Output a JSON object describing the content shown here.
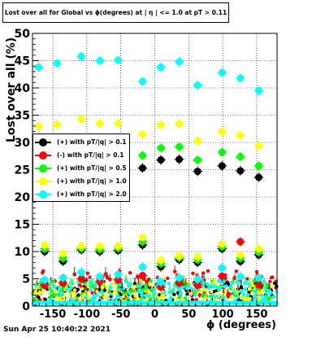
{
  "title": "Lost over all for Global vs ϕ(degrees) at | η | <= 1.0 at pT > 0.11",
  "timestamp": "Sun Apr 25 10:40:22 2021",
  "chart_data": {
    "type": "scatter",
    "title": "Lost over all for Global vs ϕ(degrees) at | η | <= 1.0 at pT > 0.11",
    "xlabel": "ϕ (degrees)",
    "ylabel": "Lost over all (%)",
    "xlim": [
      -180,
      180
    ],
    "ylim": [
      0,
      50
    ],
    "xticks": [
      -150,
      -100,
      -50,
      0,
      50,
      100,
      150
    ],
    "yticks": [
      0,
      5,
      10,
      15,
      20,
      25,
      30,
      35,
      40,
      45,
      50
    ],
    "grid": true,
    "legend_position": "left-middle",
    "series": [
      {
        "name": "(+) with pT/|q| > 0.1",
        "color": "#000000",
        "x": [
          -162,
          -135,
          -108,
          -81,
          -54,
          -18,
          9,
          36,
          63,
          99,
          126,
          153
        ],
        "y": [
          [
            -162,
            10.0
          ],
          [
            -135,
            8.2
          ],
          [
            -108,
            10.3
          ],
          [
            -81,
            10.0
          ],
          [
            -54,
            10.2
          ],
          [
            -18,
            11.2
          ],
          [
            9,
            7.2
          ],
          [
            36,
            8.5
          ],
          [
            63,
            8.0
          ],
          [
            99,
            10.5
          ],
          [
            126,
            8.2
          ],
          [
            153,
            9.4
          ]
        ]
      },
      {
        "name": "(-) with pT/|q| > 0.1",
        "color": "#ff0000",
        "x": [
          -162,
          -135,
          -108,
          -81,
          -54,
          -18,
          9,
          36,
          63,
          99,
          126,
          153
        ],
        "y": [
          [
            -162,
            3.8
          ],
          [
            -135,
            4.2
          ],
          [
            -108,
            5.0
          ],
          [
            -81,
            4.5
          ],
          [
            -54,
            4.8
          ],
          [
            -18,
            5.6
          ],
          [
            9,
            3.5
          ],
          [
            36,
            4.2
          ],
          [
            63,
            3.8
          ],
          [
            99,
            5.5
          ],
          [
            126,
            11.8
          ],
          [
            153,
            4.0
          ]
        ]
      },
      {
        "name": "(+) with pT/|q| > 0.5",
        "color": "#00ff00",
        "x": [
          -162,
          -135,
          -108,
          -81,
          -54,
          -18,
          9,
          36,
          63,
          99,
          126,
          153
        ],
        "y": [
          [
            -162,
            10.5
          ],
          [
            -135,
            8.8
          ],
          [
            -108,
            10.6
          ],
          [
            -81,
            10.4
          ],
          [
            -54,
            10.6
          ],
          [
            -18,
            11.8
          ],
          [
            9,
            7.8
          ],
          [
            36,
            8.9
          ],
          [
            63,
            8.5
          ],
          [
            99,
            10.9
          ],
          [
            126,
            8.8
          ],
          [
            153,
            9.9
          ]
        ]
      },
      {
        "name": "(+) with pT/|q| > 1.0",
        "color": "#ffff00",
        "x": [
          -162,
          -135,
          -108,
          -81,
          -54,
          -18,
          9,
          36,
          63,
          99,
          126,
          153
        ],
        "y": [
          [
            -162,
            11.2
          ],
          [
            -135,
            9.6
          ],
          [
            -108,
            11.0
          ],
          [
            -81,
            11.0
          ],
          [
            -54,
            11.0
          ],
          [
            -18,
            12.6
          ],
          [
            9,
            8.4
          ],
          [
            36,
            9.2
          ],
          [
            63,
            9.0
          ],
          [
            99,
            11.4
          ],
          [
            126,
            9.4
          ],
          [
            153,
            10.5
          ]
        ]
      },
      {
        "name": "(+) with pT/|q| > 2.0",
        "color": "#00ffff",
        "x": [
          -162,
          -135,
          -108,
          -81,
          -54,
          -18,
          9,
          36,
          63,
          99,
          126,
          153
        ],
        "y": [
          [
            -162,
            4.8
          ],
          [
            -135,
            5.2
          ],
          [
            -108,
            6.2
          ],
          [
            -81,
            5.4
          ],
          [
            -54,
            5.8
          ],
          [
            -18,
            7.2
          ],
          [
            9,
            4.4
          ],
          [
            36,
            5.2
          ],
          [
            63,
            4.9
          ],
          [
            99,
            7.0
          ],
          [
            126,
            5.4
          ],
          [
            153,
            5.2
          ]
        ]
      }
    ],
    "upper_points": [
      {
        "series": "(+) with pT/|q| > 2.0",
        "color": "#00ffff",
        "points": [
          [
            -171,
            43.8
          ],
          [
            -144,
            44.5
          ],
          [
            -108,
            45.8
          ],
          [
            -81,
            45.0
          ],
          [
            -54,
            45.1
          ],
          [
            -18,
            41.2
          ],
          [
            9,
            43.8
          ],
          [
            36,
            44.8
          ],
          [
            63,
            40.5
          ],
          [
            99,
            42.8
          ],
          [
            126,
            41.8
          ],
          [
            153,
            39.5
          ]
        ]
      },
      {
        "series": "(+) with pT/|q| > 1.0",
        "color": "#ffff00",
        "points": [
          [
            -171,
            33.0
          ],
          [
            -144,
            33.3
          ],
          [
            -108,
            34.3
          ],
          [
            -81,
            33.5
          ],
          [
            -54,
            33.5
          ],
          [
            -18,
            31.5
          ],
          [
            9,
            33.2
          ],
          [
            36,
            33.4
          ],
          [
            63,
            30.3
          ],
          [
            99,
            32.0
          ],
          [
            126,
            31.3
          ],
          [
            153,
            29.4
          ]
        ]
      },
      {
        "series": "(+) with pT/|q| > 0.5",
        "color": "#00ff00",
        "points": [
          [
            -18,
            27.6
          ],
          [
            9,
            29.0
          ],
          [
            36,
            29.2
          ],
          [
            63,
            26.8
          ],
          [
            99,
            28.2
          ],
          [
            126,
            27.4
          ],
          [
            153,
            25.7
          ]
        ]
      },
      {
        "series": "(+) with pT/|q| > 0.1",
        "color": "#000000",
        "points": [
          [
            -18,
            25.3
          ],
          [
            9,
            26.8
          ],
          [
            36,
            26.9
          ],
          [
            63,
            24.7
          ],
          [
            99,
            25.7
          ],
          [
            126,
            24.8
          ],
          [
            153,
            23.6
          ]
        ]
      }
    ],
    "noise_band": {
      "ymin": 0.3,
      "ymax": 6.5,
      "colors": [
        "#ff0000",
        "#000000",
        "#00ff00",
        "#ffff00",
        "#00ffff"
      ]
    }
  }
}
